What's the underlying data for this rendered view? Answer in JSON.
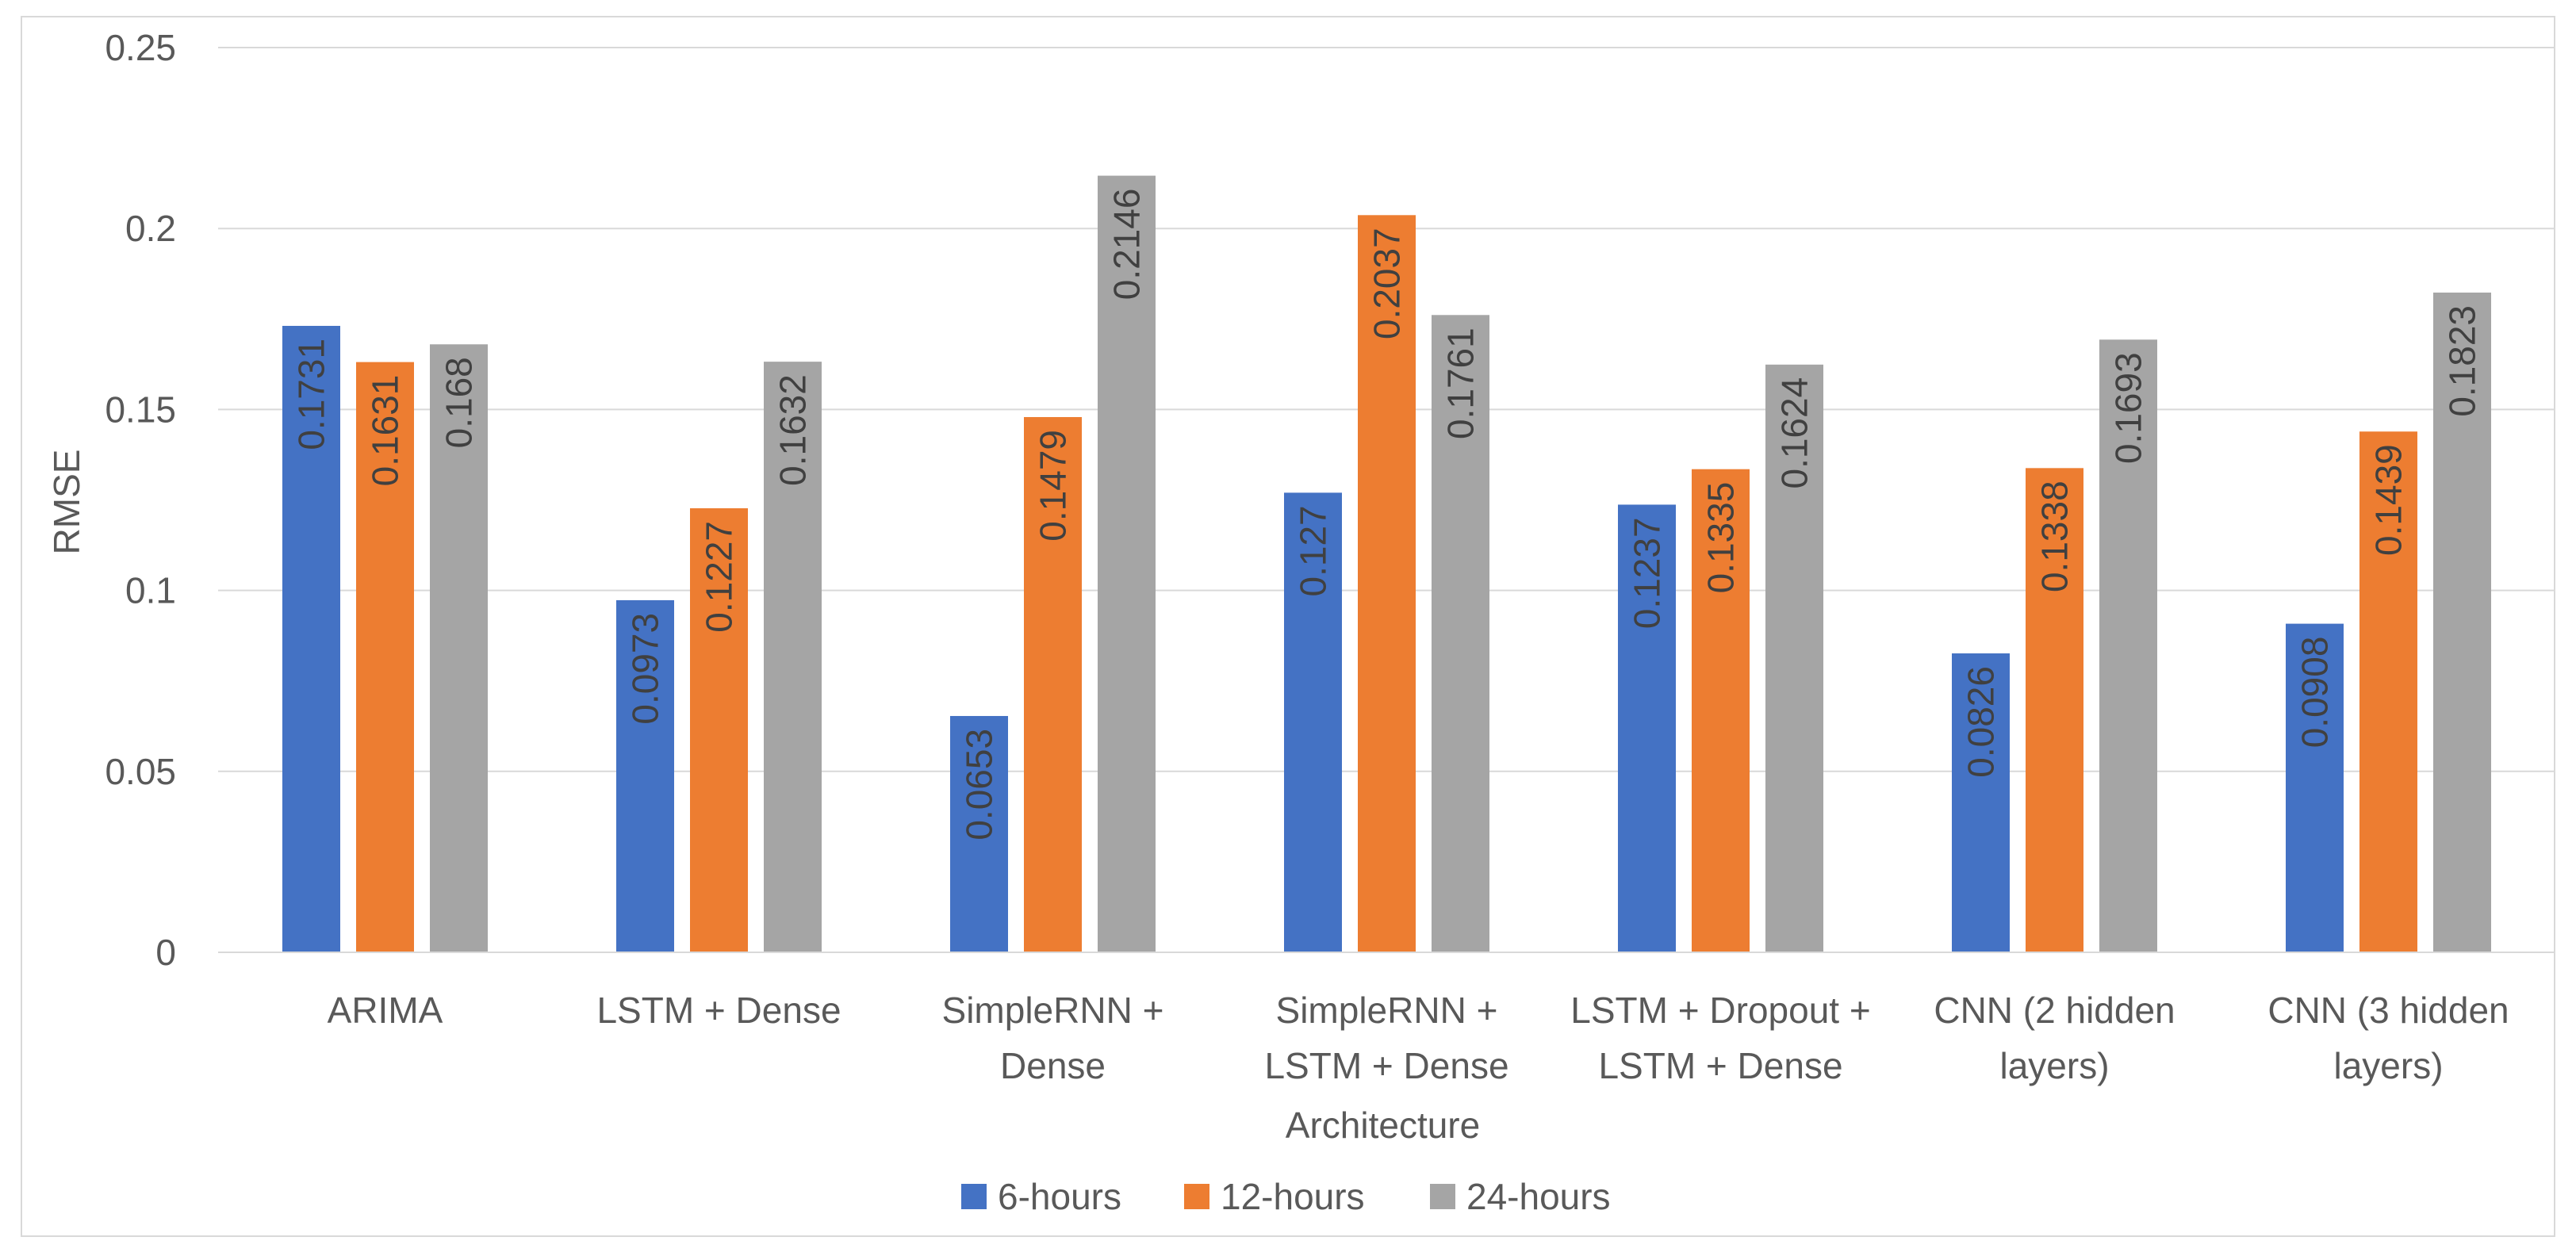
{
  "chart_data": {
    "type": "bar",
    "title": "",
    "xlabel": "Architecture",
    "ylabel": "RMSE",
    "ylim": [
      0,
      0.25
    ],
    "yticks": [
      "0",
      "0.05",
      "0.1",
      "0.15",
      "0.2",
      "0.25"
    ],
    "ytick_values": [
      0,
      0.05,
      0.1,
      0.15,
      0.2,
      0.25
    ],
    "grid": true,
    "legend_position": "bottom",
    "categories": [
      [
        "ARIMA"
      ],
      [
        "LSTM + Dense"
      ],
      [
        "SimpleRNN +",
        "Dense"
      ],
      [
        "SimpleRNN +",
        "LSTM + Dense"
      ],
      [
        "LSTM + Dropout +",
        "LSTM + Dense"
      ],
      [
        "CNN (2 hidden",
        "layers)"
      ],
      [
        "CNN (3 hidden",
        "layers)"
      ]
    ],
    "series": [
      {
        "name": "6-hours",
        "color": "#4472C4",
        "values": [
          0.1731,
          0.0973,
          0.0653,
          0.127,
          0.1237,
          0.0826,
          0.0908
        ],
        "labels": [
          "0.1731",
          "0.0973",
          "0.0653",
          "0.127",
          "0.1237",
          "0.0826",
          "0.0908"
        ]
      },
      {
        "name": "12-hours",
        "color": "#ED7D31",
        "values": [
          0.1631,
          0.1227,
          0.1479,
          0.2037,
          0.1335,
          0.1338,
          0.1439
        ],
        "labels": [
          "0.1631",
          "0.1227",
          "0.1479",
          "0.2037",
          "0.1335",
          "0.1338",
          "0.1439"
        ]
      },
      {
        "name": "24-hours",
        "color": "#A5A5A5",
        "values": [
          0.168,
          0.1632,
          0.2146,
          0.1761,
          0.1624,
          0.1693,
          0.1823
        ],
        "labels": [
          "0.168",
          "0.1632",
          "0.2146",
          "0.1761",
          "0.1624",
          "0.1693",
          "0.1823"
        ]
      }
    ]
  }
}
